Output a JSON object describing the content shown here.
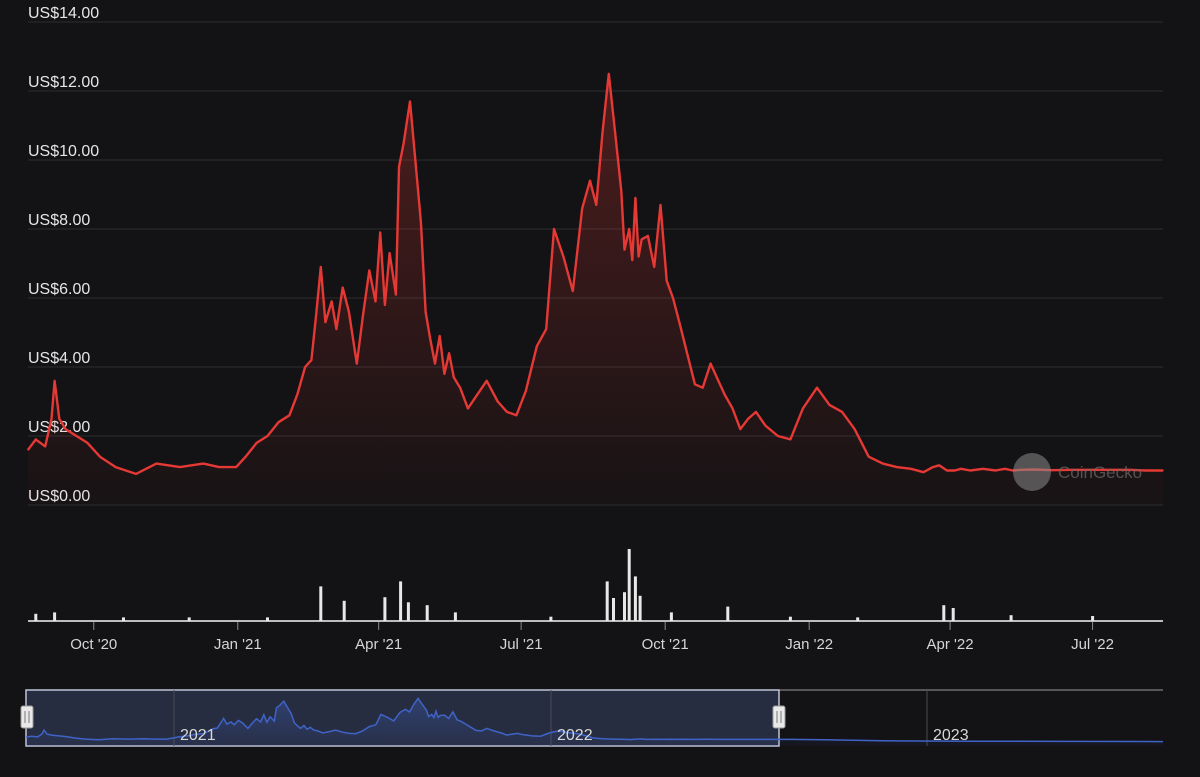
{
  "watermark": {
    "text": "CoinGecko"
  },
  "colors": {
    "background": "#131214",
    "price_line": "#e53935",
    "grid": "#2e2e30",
    "volume": "#e8e8e8",
    "navigator_line": "#3f63c7",
    "navigator_window": "#2c3349"
  },
  "navigator": {
    "labels": [
      "2021",
      "2022",
      "2023"
    ]
  },
  "chart_data": {
    "type": "line",
    "title": "",
    "xlabel": "",
    "ylabel": "",
    "y_tick_labels": [
      "US$0.00",
      "US$2.00",
      "US$4.00",
      "US$6.00",
      "US$8.00",
      "US$10.00",
      "US$12.00",
      "US$14.00"
    ],
    "y_ticks": [
      0,
      2,
      4,
      6,
      8,
      10,
      12,
      14
    ],
    "ylim": [
      0,
      14
    ],
    "x_tick_labels": [
      "Oct '20",
      "Jan '21",
      "Apr '21",
      "Jul '21",
      "Oct '21",
      "Jan '22",
      "Apr '22",
      "Jul '22"
    ],
    "x_ticks": [
      "2020-10-01",
      "2021-01-01",
      "2021-04-01",
      "2021-07-01",
      "2021-10-01",
      "2022-01-01",
      "2022-04-01",
      "2022-07-01"
    ],
    "xlim": [
      "2020-08-20",
      "2022-08-15"
    ],
    "grid": true,
    "series": [
      {
        "values_unit": "USD",
        "x": [
          "2020-08-20",
          "2020-08-25",
          "2020-08-31",
          "2020-09-04",
          "2020-09-06",
          "2020-09-09",
          "2020-09-13",
          "2020-09-20",
          "2020-09-27",
          "2020-10-05",
          "2020-10-15",
          "2020-10-28",
          "2020-11-10",
          "2020-11-25",
          "2020-12-10",
          "2020-12-20",
          "2020-12-31",
          "2021-01-06",
          "2021-01-13",
          "2021-01-20",
          "2021-01-27",
          "2021-02-03",
          "2021-02-08",
          "2021-02-13",
          "2021-02-17",
          "2021-02-20",
          "2021-02-23",
          "2021-02-26",
          "2021-03-02",
          "2021-03-05",
          "2021-03-09",
          "2021-03-13",
          "2021-03-18",
          "2021-03-22",
          "2021-03-26",
          "2021-03-30",
          "2021-04-02",
          "2021-04-05",
          "2021-04-08",
          "2021-04-12",
          "2021-04-14",
          "2021-04-17",
          "2021-04-21",
          "2021-04-24",
          "2021-04-28",
          "2021-05-01",
          "2021-05-04",
          "2021-05-07",
          "2021-05-10",
          "2021-05-13",
          "2021-05-16",
          "2021-05-19",
          "2021-05-23",
          "2021-05-28",
          "2021-06-03",
          "2021-06-09",
          "2021-06-16",
          "2021-06-22",
          "2021-06-28",
          "2021-07-04",
          "2021-07-11",
          "2021-07-17",
          "2021-07-22",
          "2021-07-28",
          "2021-08-03",
          "2021-08-09",
          "2021-08-14",
          "2021-08-18",
          "2021-08-22",
          "2021-08-26",
          "2021-08-30",
          "2021-09-03",
          "2021-09-05",
          "2021-09-08",
          "2021-09-10",
          "2021-09-12",
          "2021-09-14",
          "2021-09-16",
          "2021-09-20",
          "2021-09-24",
          "2021-09-28",
          "2021-10-02",
          "2021-10-06",
          "2021-10-10",
          "2021-10-15",
          "2021-10-20",
          "2021-10-25",
          "2021-10-30",
          "2021-11-03",
          "2021-11-08",
          "2021-11-13",
          "2021-11-18",
          "2021-11-23",
          "2021-11-28",
          "2021-12-04",
          "2021-12-12",
          "2021-12-20",
          "2021-12-28",
          "2022-01-06",
          "2022-01-14",
          "2022-01-22",
          "2022-01-30",
          "2022-02-08",
          "2022-02-17",
          "2022-02-26",
          "2022-03-07",
          "2022-03-15",
          "2022-03-21",
          "2022-03-25",
          "2022-03-30",
          "2022-04-04",
          "2022-04-08",
          "2022-04-14",
          "2022-04-22",
          "2022-04-30",
          "2022-05-06",
          "2022-05-11",
          "2022-05-16",
          "2022-05-25",
          "2022-06-05",
          "2022-06-18",
          "2022-07-01",
          "2022-07-14",
          "2022-07-25",
          "2022-08-04",
          "2022-08-15"
        ],
        "values": [
          1.6,
          1.9,
          1.7,
          2.5,
          3.6,
          2.5,
          2.2,
          2.0,
          1.8,
          1.4,
          1.1,
          0.9,
          1.2,
          1.1,
          1.2,
          1.1,
          1.1,
          1.4,
          1.8,
          2.0,
          2.4,
          2.6,
          3.2,
          4.0,
          4.2,
          5.5,
          6.9,
          5.3,
          5.9,
          5.1,
          6.3,
          5.6,
          4.1,
          5.5,
          6.8,
          5.9,
          7.9,
          5.8,
          7.3,
          6.1,
          9.8,
          10.5,
          11.7,
          10.2,
          8.2,
          5.6,
          4.8,
          4.1,
          4.9,
          3.8,
          4.4,
          3.7,
          3.4,
          2.8,
          3.2,
          3.6,
          3.0,
          2.7,
          2.6,
          3.3,
          4.6,
          5.1,
          8.0,
          7.2,
          6.2,
          8.6,
          9.4,
          8.7,
          10.8,
          12.5,
          10.8,
          9.1,
          7.4,
          8.0,
          7.1,
          8.9,
          7.2,
          7.7,
          7.8,
          6.9,
          8.7,
          6.5,
          6.0,
          5.3,
          4.4,
          3.5,
          3.4,
          4.1,
          3.7,
          3.2,
          2.8,
          2.2,
          2.5,
          2.7,
          2.3,
          2.0,
          1.9,
          2.8,
          3.4,
          2.9,
          2.7,
          2.2,
          1.4,
          1.2,
          1.1,
          1.05,
          0.95,
          1.1,
          1.15,
          1.0,
          1.0,
          1.05,
          1.0,
          1.05,
          1.0,
          1.05,
          1.0,
          1.02,
          1.03,
          1.01,
          1.02,
          1.02,
          1.02,
          1.02,
          1.0,
          1.0
        ]
      }
    ],
    "volume": {
      "values_unit": "USD",
      "x": [
        "2020-08-25",
        "2020-09-06",
        "2020-10-20",
        "2020-12-01",
        "2021-01-20",
        "2021-02-23",
        "2021-03-10",
        "2021-04-05",
        "2021-04-15",
        "2021-04-20",
        "2021-05-02",
        "2021-05-20",
        "2021-07-20",
        "2021-08-25",
        "2021-08-29",
        "2021-09-05",
        "2021-09-08",
        "2021-09-12",
        "2021-09-15",
        "2021-10-05",
        "2021-11-10",
        "2021-12-20",
        "2022-02-01",
        "2022-03-28",
        "2022-04-03",
        "2022-05-10",
        "2022-07-01"
      ],
      "relative_heights": [
        0.1,
        0.12,
        0.05,
        0.05,
        0.05,
        0.48,
        0.28,
        0.33,
        0.55,
        0.26,
        0.22,
        0.12,
        0.06,
        0.55,
        0.32,
        0.4,
        1.0,
        0.62,
        0.35,
        0.12,
        0.2,
        0.06,
        0.05,
        0.22,
        0.18,
        0.08,
        0.07
      ]
    }
  }
}
